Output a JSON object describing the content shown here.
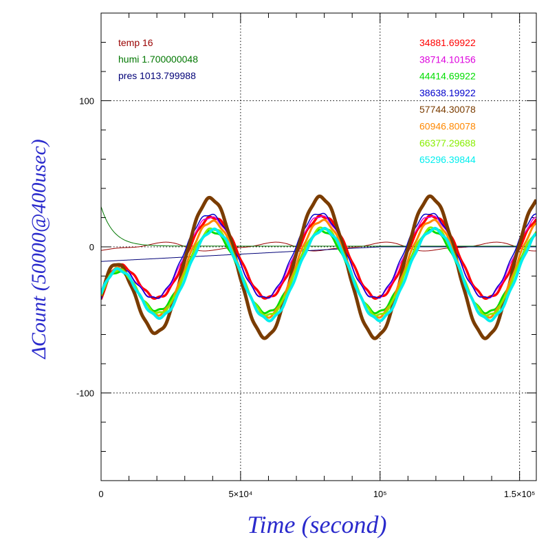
{
  "chart_data": {
    "type": "line",
    "xlabel": "Time (second)",
    "ylabel": "ΔCount (50000@400usec)",
    "xlim": [
      0,
      156000
    ],
    "ylim": [
      -160,
      160
    ],
    "x_ticks": [
      {
        "value": 0,
        "label": "0"
      },
      {
        "value": 50000,
        "label": "5×10⁴"
      },
      {
        "value": 100000,
        "label": "10⁵"
      },
      {
        "value": 150000,
        "label": "1.5×10⁵"
      }
    ],
    "y_ticks": [
      {
        "value": 100,
        "label": "100"
      },
      {
        "value": 0,
        "label": "0"
      },
      {
        "value": -100,
        "label": "-100"
      }
    ],
    "grid": true,
    "period": 39500,
    "env_legend": [
      {
        "label": "temp",
        "value": "16",
        "color": "#990000"
      },
      {
        "label": "humi",
        "value": "1.700000048",
        "color": "#007700"
      },
      {
        "label": "pres",
        "value": "1013.799988",
        "color": "#000077"
      }
    ],
    "series": [
      {
        "label": "34881.69922",
        "color": "#ff0000",
        "amp": 28,
        "offset": -7,
        "phase": 30000,
        "width": 3.5
      },
      {
        "label": "38714.10156",
        "color": "#dd00dd",
        "amp": 28,
        "offset": -7,
        "phase": 29300,
        "width": 1.5
      },
      {
        "label": "44414.69922",
        "color": "#00dd00",
        "amp": 28,
        "offset": -17,
        "phase": 29800,
        "width": 3
      },
      {
        "label": "38638.19922",
        "color": "#0000cc",
        "amp": 29,
        "offset": -6,
        "phase": 29000,
        "width": 1.5
      },
      {
        "label": "57744.30078",
        "color": "#7a3c00",
        "amp": 48,
        "offset": -14,
        "phase": 29300,
        "width": 5
      },
      {
        "label": "60946.80078",
        "color": "#ff8800",
        "amp": 33,
        "offset": -15,
        "phase": 29900,
        "width": 3
      },
      {
        "label": "66377.29688",
        "color": "#88ee00",
        "amp": 30,
        "offset": -17,
        "phase": 30200,
        "width": 3
      },
      {
        "label": "65296.39844",
        "color": "#00eeee",
        "amp": 31,
        "offset": -19,
        "phase": 30500,
        "width": 4
      }
    ]
  }
}
